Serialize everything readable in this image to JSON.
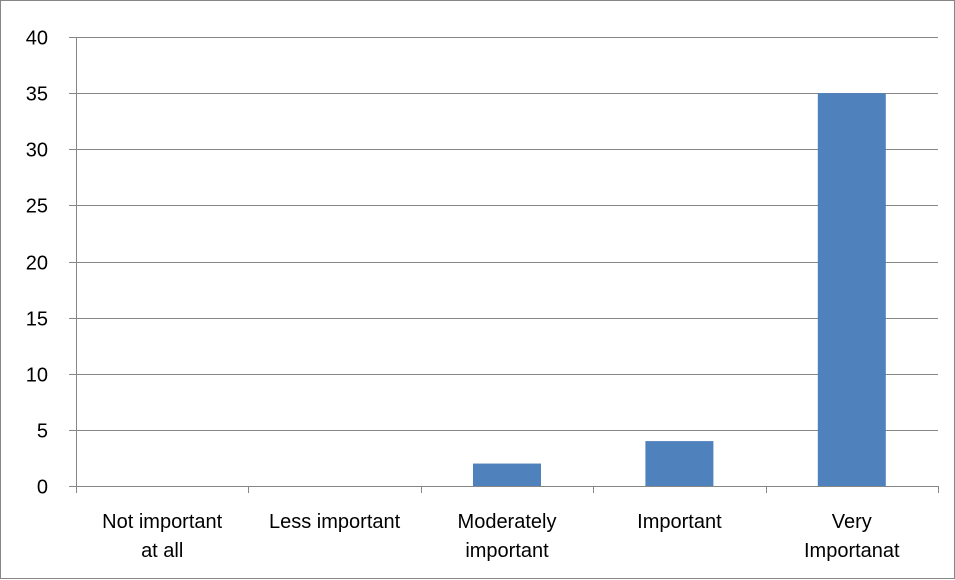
{
  "chart_data": {
    "type": "bar",
    "categories": [
      [
        "Not important",
        "at all"
      ],
      [
        "Less important"
      ],
      [
        "Moderately",
        "important"
      ],
      [
        "Important"
      ],
      [
        "Very",
        "Importanat"
      ]
    ],
    "values": [
      0,
      0,
      2,
      4,
      35
    ],
    "ylim": [
      0,
      40
    ],
    "yticks": [
      0,
      5,
      10,
      15,
      20,
      25,
      30,
      35,
      40
    ],
    "grid": true,
    "legend": "none",
    "bar_color": "#4F81BD",
    "gridline_color": "#868686"
  }
}
